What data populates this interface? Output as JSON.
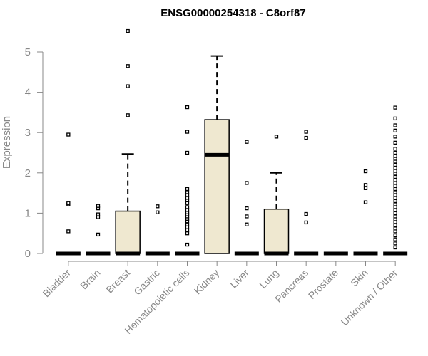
{
  "chart_data": {
    "type": "boxplot",
    "title": "ENSG00000254318 - C8orf87",
    "xlabel": "",
    "ylabel": "Expression",
    "ylim": [
      0,
      5.5
    ],
    "yticks": [
      0,
      1,
      2,
      3,
      4,
      5
    ],
    "grid": false,
    "box_fill": "#efe8d0",
    "categories": [
      "Bladder",
      "Brain",
      "Breast",
      "Gastric",
      "Hematopoietic cells",
      "Kidney",
      "Liver",
      "Lung",
      "Pancreas",
      "Prostate",
      "Skin",
      "Unknown / Other"
    ],
    "boxes": [
      {
        "category": "Bladder",
        "q1": 0,
        "median": 0,
        "q3": 0,
        "whisker_low": 0,
        "whisker_high": 0,
        "outliers": [
          0.55,
          1.22,
          1.25,
          2.95
        ]
      },
      {
        "category": "Brain",
        "q1": 0,
        "median": 0,
        "q3": 0,
        "whisker_low": 0,
        "whisker_high": 0,
        "outliers": [
          0.47,
          0.9,
          0.97,
          1.12,
          1.18
        ]
      },
      {
        "category": "Breast",
        "q1": 0,
        "median": 0,
        "q3": 1.05,
        "whisker_low": 0,
        "whisker_high": 2.47,
        "outliers": [
          3.43,
          4.15,
          4.65,
          5.52
        ]
      },
      {
        "category": "Gastric",
        "q1": 0,
        "median": 0,
        "q3": 0,
        "whisker_low": 0,
        "whisker_high": 0,
        "outliers": [
          1.02,
          1.17
        ]
      },
      {
        "category": "Hematopoietic cells",
        "q1": 0,
        "median": 0,
        "q3": 0,
        "whisker_low": 0,
        "whisker_high": 0,
        "outliers": [
          0.22,
          0.5,
          0.58,
          0.65,
          0.72,
          0.8,
          0.86,
          0.92,
          0.97,
          1.02,
          1.08,
          1.15,
          1.25,
          1.32,
          1.38,
          1.45,
          1.52,
          1.6,
          2.5,
          3.02,
          3.63
        ]
      },
      {
        "category": "Kidney",
        "q1": 0,
        "median": 2.45,
        "q3": 3.32,
        "whisker_low": 0,
        "whisker_high": 4.9,
        "outliers": []
      },
      {
        "category": "Liver",
        "q1": 0,
        "median": 0,
        "q3": 0,
        "whisker_low": 0,
        "whisker_high": 0,
        "outliers": [
          0.72,
          0.92,
          1.12,
          1.75,
          2.77
        ]
      },
      {
        "category": "Lung",
        "q1": 0,
        "median": 0,
        "q3": 1.1,
        "whisker_low": 0,
        "whisker_high": 2.0,
        "outliers": [
          2.9
        ]
      },
      {
        "category": "Pancreas",
        "q1": 0,
        "median": 0,
        "q3": 0,
        "whisker_low": 0,
        "whisker_high": 0,
        "outliers": [
          0.77,
          0.98,
          2.87,
          3.02
        ]
      },
      {
        "category": "Prostate",
        "q1": 0,
        "median": 0,
        "q3": 0,
        "whisker_low": 0,
        "whisker_high": 0,
        "outliers": []
      },
      {
        "category": "Skin",
        "q1": 0,
        "median": 0,
        "q3": 0,
        "whisker_low": 0,
        "whisker_high": 0,
        "outliers": [
          1.27,
          1.62,
          1.7,
          2.04
        ]
      },
      {
        "category": "Unknown / Other",
        "q1": 0,
        "median": 0,
        "q3": 0,
        "whisker_low": 0,
        "whisker_high": 0,
        "outliers": [
          0.15,
          0.25,
          0.35,
          0.45,
          0.55,
          0.62,
          0.7,
          0.78,
          0.85,
          0.92,
          1.0,
          1.08,
          1.15,
          1.22,
          1.3,
          1.38,
          1.45,
          1.52,
          1.6,
          1.68,
          1.75,
          1.82,
          1.9,
          1.98,
          2.05,
          2.12,
          2.2,
          2.28,
          2.35,
          2.42,
          2.5,
          2.6,
          2.75,
          2.9,
          3.05,
          3.18,
          3.35,
          3.62
        ]
      }
    ]
  }
}
